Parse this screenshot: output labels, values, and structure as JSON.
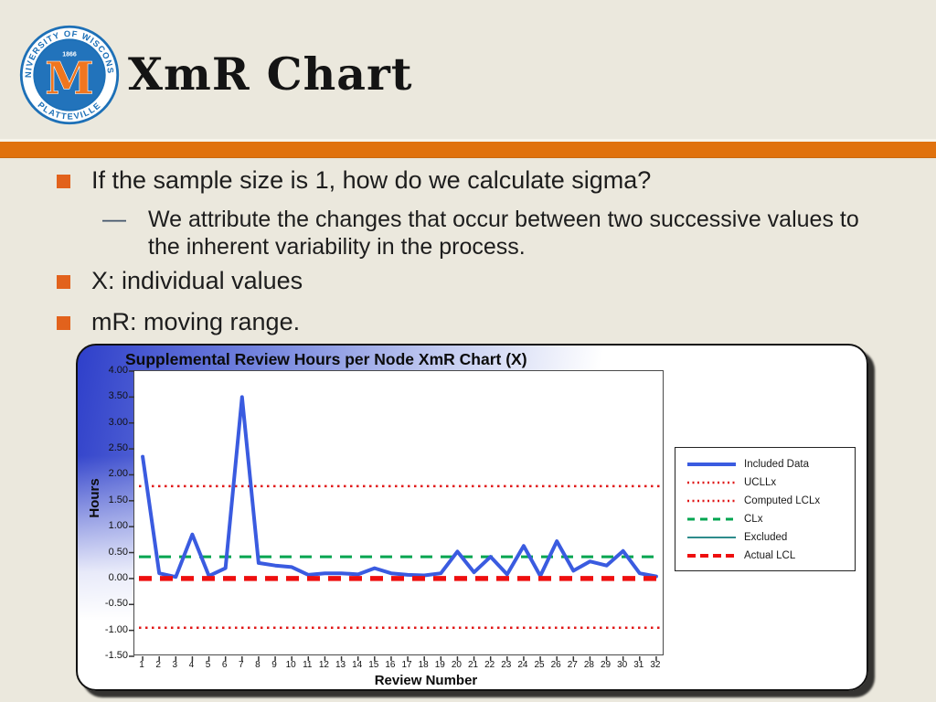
{
  "slide": {
    "title": "XmR Chart",
    "background_color": "#ebe8dd",
    "accent_bar_color": "#e0720e",
    "bullet_color": "#e2621c",
    "logo": {
      "top_text": "UNIVERSITY OF WISCONSIN",
      "bottom_text": "PLATTEVILLE",
      "year": "1866",
      "letter": "M"
    },
    "bullets": [
      {
        "level": 1,
        "text": "If the sample size is 1, how do we calculate sigma?"
      },
      {
        "level": 2,
        "text": "We attribute the changes that occur between two successive values to the inherent variability in the process."
      },
      {
        "level": 1,
        "text": "X: individual values"
      },
      {
        "level": 1,
        "text": "mR: moving range."
      }
    ],
    "sub_bullet_marker": "—"
  },
  "chart_data": {
    "type": "line",
    "title": "Supplemental Review Hours per Node XmR Chart (X)",
    "xlabel": "Review Number",
    "ylabel": "Hours",
    "ylim": [
      -1.5,
      4.0
    ],
    "ytick_step": 0.5,
    "x": [
      1,
      2,
      3,
      4,
      5,
      6,
      7,
      8,
      9,
      10,
      11,
      12,
      13,
      14,
      15,
      16,
      17,
      18,
      19,
      20,
      21,
      22,
      23,
      24,
      25,
      26,
      27,
      28,
      29,
      30,
      31,
      32
    ],
    "grid": false,
    "legend_position": "right",
    "series": [
      {
        "name": "Included Data",
        "kind": "data",
        "color": "#3a5be0",
        "dash": "solid",
        "width": 4,
        "values": [
          2.35,
          0.1,
          0.03,
          0.85,
          0.05,
          0.2,
          3.5,
          0.3,
          0.25,
          0.22,
          0.07,
          0.1,
          0.1,
          0.08,
          0.2,
          0.1,
          0.07,
          0.06,
          0.1,
          0.52,
          0.12,
          0.42,
          0.08,
          0.63,
          0.05,
          0.72,
          0.15,
          0.33,
          0.25,
          0.53,
          0.1,
          0.04
        ]
      },
      {
        "name": "UCLLx",
        "kind": "hline",
        "color": "#e01818",
        "dash": "dotted",
        "width": 2.5,
        "value": 1.78
      },
      {
        "name": "Computed LCLx",
        "kind": "hline",
        "color": "#e01818",
        "dash": "dotted",
        "width": 2.5,
        "value": -0.95
      },
      {
        "name": "CLx",
        "kind": "hline",
        "color": "#00a550",
        "dash": "dashed",
        "width": 3,
        "value": 0.42
      },
      {
        "name": "Excluded",
        "kind": "legend-only",
        "color": "#2e8b8b",
        "dash": "solid",
        "width": 2,
        "value": null
      },
      {
        "name": "Actual LCL",
        "kind": "hline",
        "color": "#ee0f0f",
        "dash": "thick-dashed",
        "width": 5.5,
        "value": 0.0
      }
    ]
  }
}
